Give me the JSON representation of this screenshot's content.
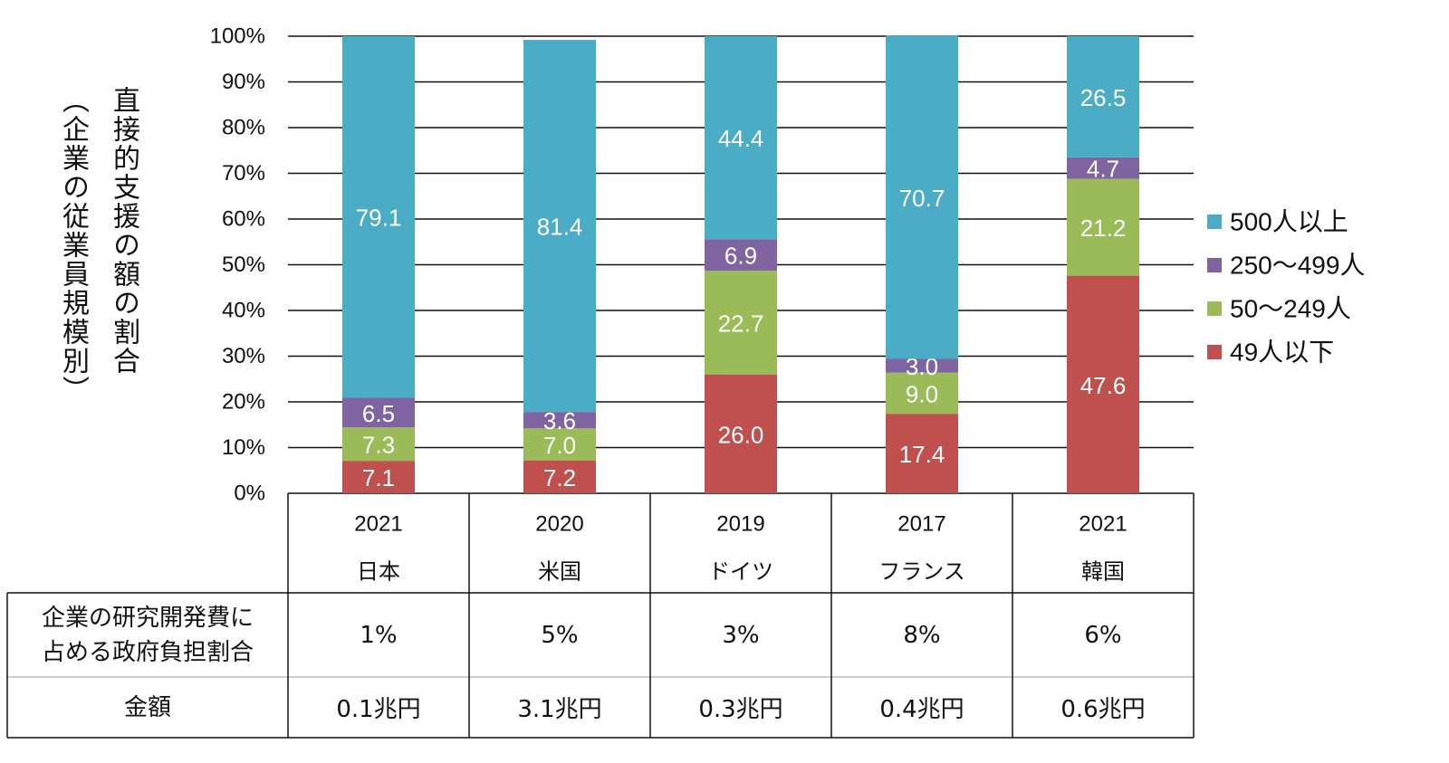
{
  "chart_data": {
    "type": "bar",
    "stacked": true,
    "ylabel": "直接的支援の額の割合",
    "ylabel_sub": "（企業の従業員規模別）",
    "yticks": [
      "0%",
      "10%",
      "20%",
      "30%",
      "40%",
      "50%",
      "60%",
      "70%",
      "80%",
      "90%",
      "100%"
    ],
    "ylim": [
      0,
      100
    ],
    "grid": true,
    "categories": [
      {
        "year": "2021",
        "country": "日本"
      },
      {
        "year": "2020",
        "country": "米国"
      },
      {
        "year": "2019",
        "country": "ドイツ"
      },
      {
        "year": "2017",
        "country": "フランス"
      },
      {
        "year": "2021",
        "country": "韓国"
      }
    ],
    "series": [
      {
        "name": "49人以下",
        "color": "#c0504d",
        "values": [
          7.1,
          7.2,
          26.0,
          17.4,
          47.6
        ],
        "labels": [
          "7.1",
          "7.2",
          "26.0",
          "17.4",
          "47.6"
        ]
      },
      {
        "name": "50〜249人",
        "color": "#9bbb59",
        "values": [
          7.3,
          7.0,
          22.7,
          9.0,
          21.2
        ],
        "labels": [
          "7.3",
          "7.0",
          "22.7",
          "9.0",
          "21.2"
        ]
      },
      {
        "name": "250〜499人",
        "color": "#8064a2",
        "values": [
          6.5,
          3.6,
          6.9,
          3.0,
          4.7
        ],
        "labels": [
          "6.5",
          "3.6",
          "6.9",
          "3.0",
          "4.7"
        ]
      },
      {
        "name": "500人以上",
        "color": "#4bacc6",
        "values": [
          79.1,
          81.4,
          44.4,
          70.7,
          26.5
        ],
        "labels": [
          "79.1",
          "81.4",
          "44.4",
          "70.7",
          "26.5"
        ]
      }
    ],
    "legend": {
      "position": "right",
      "order": [
        "500人以上",
        "250〜499人",
        "50〜249人",
        "49人以下"
      ]
    }
  },
  "table": {
    "rows": [
      {
        "label_lines": [
          "企業の研究開発費に",
          "占める政府負担割合"
        ],
        "values": [
          "1%",
          "5%",
          "3%",
          "8%",
          "6%"
        ]
      },
      {
        "label_lines": [
          "金額"
        ],
        "values": [
          "0.1兆円",
          "3.1兆円",
          "0.3兆円",
          "0.4兆円",
          "0.6兆円"
        ]
      }
    ]
  }
}
